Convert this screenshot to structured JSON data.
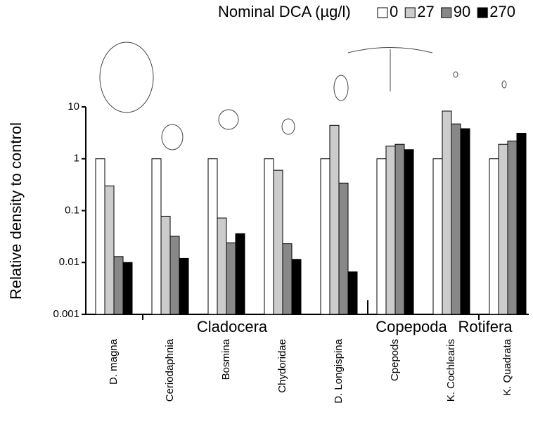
{
  "chart_data": {
    "type": "bar",
    "y_label": "Relative density to control",
    "legend_title": "Nominal DCA (µg/l)",
    "legend_position": "top",
    "log_scale": true,
    "categories": [
      "D. magna",
      "Ceriodaphnia",
      "Bosmina",
      "Chydoridae",
      "D. Longispina",
      "Cpepods",
      "K. Cochlearis",
      "K. Quadrata"
    ],
    "series": [
      {
        "name": "0",
        "color": "#ffffff",
        "values": [
          1,
          1,
          1,
          1,
          1,
          1,
          1,
          1
        ]
      },
      {
        "name": "27",
        "color": "#cccccc",
        "values": [
          0.3,
          0.078,
          0.072,
          0.6,
          4.4,
          1.75,
          8.3,
          1.9
        ]
      },
      {
        "name": "90",
        "color": "#888888",
        "values": [
          0.013,
          0.032,
          0.024,
          0.023,
          0.34,
          1.9,
          4.7,
          2.2
        ]
      },
      {
        "name": "270",
        "color": "#000000",
        "values": [
          0.01,
          0.012,
          0.036,
          0.0115,
          0.0066,
          1.5,
          3.8,
          3.1
        ]
      }
    ],
    "ylim": [
      0.001,
      10
    ],
    "yticks": [
      0.001,
      0.01,
      0.1,
      1,
      10
    ],
    "group_labels": [
      "Cladocera",
      "Copepoda",
      "Rotifera"
    ]
  }
}
